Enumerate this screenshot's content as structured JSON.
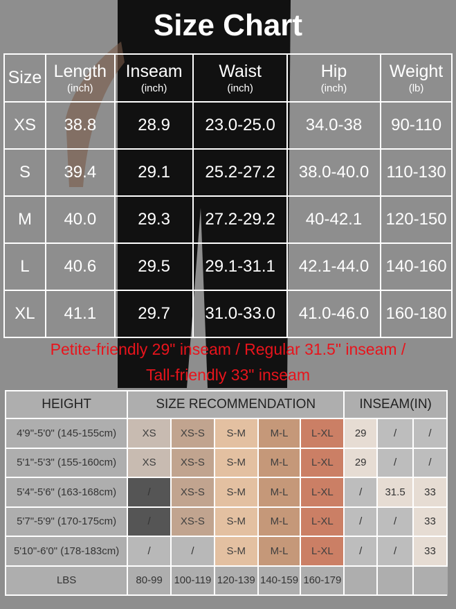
{
  "title": "Size Chart",
  "size_table": {
    "headers": [
      {
        "label": "Size",
        "unit": ""
      },
      {
        "label": "Length",
        "unit": "(inch)"
      },
      {
        "label": "Inseam",
        "unit": "(inch)"
      },
      {
        "label": "Waist",
        "unit": "(inch)"
      },
      {
        "label": "Hip",
        "unit": "(inch)"
      },
      {
        "label": "Weight",
        "unit": "(lb)"
      }
    ],
    "rows": [
      [
        "XS",
        "38.8",
        "28.9",
        "23.0-25.0",
        "34.0-38",
        "90-110"
      ],
      [
        "S",
        "39.4",
        "29.1",
        "25.2-27.2",
        "38.0-40.0",
        "110-130"
      ],
      [
        "M",
        "40.0",
        "29.3",
        "27.2-29.2",
        "40-42.1",
        "120-150"
      ],
      [
        "L",
        "40.6",
        "29.5",
        "29.1-31.1",
        "42.1-44.0",
        "140-160"
      ],
      [
        "XL",
        "41.1",
        "29.7",
        "31.0-33.0",
        "41.0-46.0",
        "160-180"
      ]
    ]
  },
  "note": [
    "Petite-friendly 29\" inseam / Regular 31.5\" inseam /",
    "Tall-friendly 33\" inseam"
  ],
  "recommendation_table": {
    "headers": [
      "HEIGHT",
      "SIZE RECOMMENDATION",
      "INSEAM(IN)"
    ],
    "rows": [
      [
        "4'9\"-5'0\" (145-155cm)",
        "XS",
        "XS-S",
        "S-M",
        "M-L",
        "L-XL",
        "29",
        "/",
        "/"
      ],
      [
        "5'1\"-5'3\" (155-160cm)",
        "XS",
        "XS-S",
        "S-M",
        "M-L",
        "L-XL",
        "29",
        "/",
        "/"
      ],
      [
        "5'4\"-5'6\" (163-168cm)",
        "/",
        "XS-S",
        "S-M",
        "M-L",
        "L-XL",
        "/",
        "31.5",
        "33"
      ],
      [
        "5'7\"-5'9\" (170-175cm)",
        "/",
        "XS-S",
        "S-M",
        "M-L",
        "L-XL",
        "/",
        "/",
        "33"
      ],
      [
        "5'10\"-6'0\" (178-183cm)",
        "/",
        "/",
        "S-M",
        "M-L",
        "L-XL",
        "/",
        "/",
        "33"
      ]
    ],
    "lbs_row": [
      "LBS",
      "80-99",
      "100-119",
      "120-139",
      "140-159",
      "160-179",
      "",
      "",
      ""
    ]
  },
  "colors": {
    "note": "#e8141c",
    "xs": "#cbbdb2",
    "xs_s": "#c4a48c",
    "s_m": "#e9c2a0",
    "m_l": "#c89674",
    "l_xl": "#cf7a5e",
    "inseam_light": "#e6dcd3"
  }
}
